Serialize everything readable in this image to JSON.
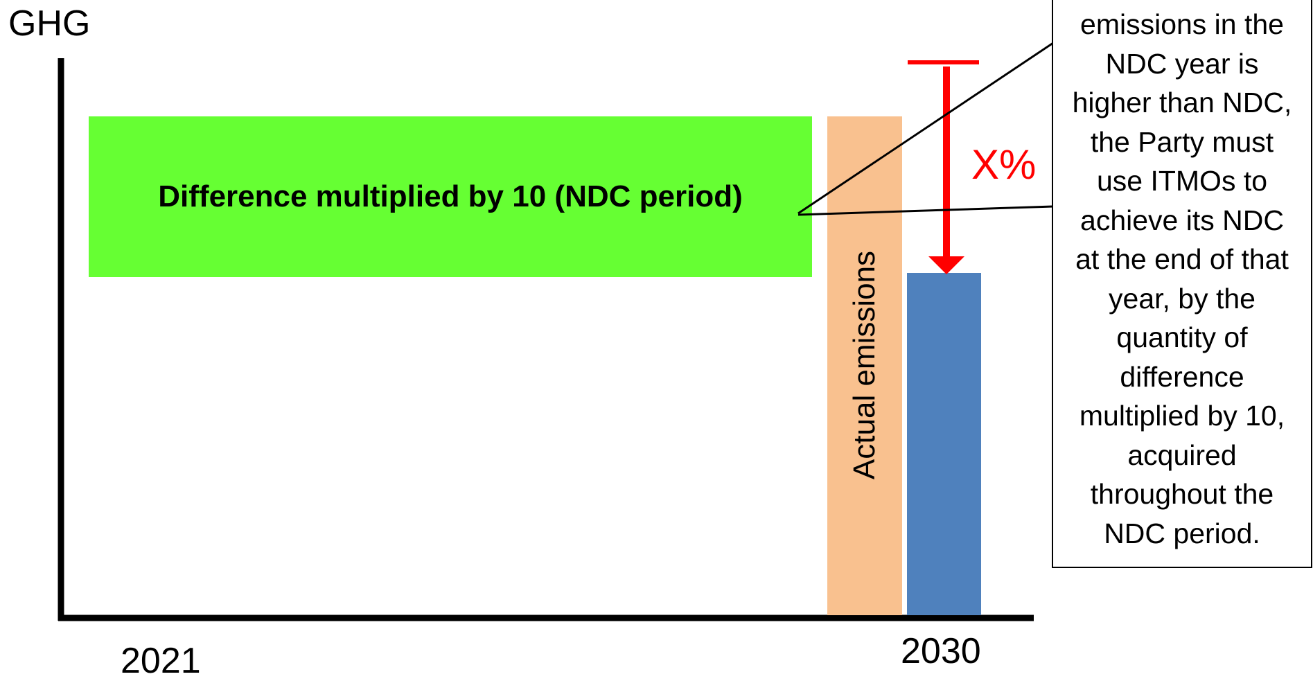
{
  "diagram": {
    "y_axis_label": "GHG",
    "x_ticks": [
      "2021",
      "2030"
    ],
    "green_box_label": "Difference multiplied by 10 (NDC period)",
    "orange_bar_label": "Actual emissions",
    "reduction_label": "X%",
    "callout_lines": [
      "emissions in the",
      "NDC year is",
      "higher than NDC,",
      "the Party must",
      "use ITMOs to",
      "achieve its NDC",
      "at the end of that",
      "year, by the",
      "quantity of",
      "difference",
      "multiplied by 10,",
      "acquired",
      "throughout the",
      "NDC period."
    ],
    "colors": {
      "green": "#66ff33",
      "orange": "#f9c18f",
      "blue": "#4f81bd",
      "red": "#ff0000",
      "axis": "#000000"
    }
  }
}
